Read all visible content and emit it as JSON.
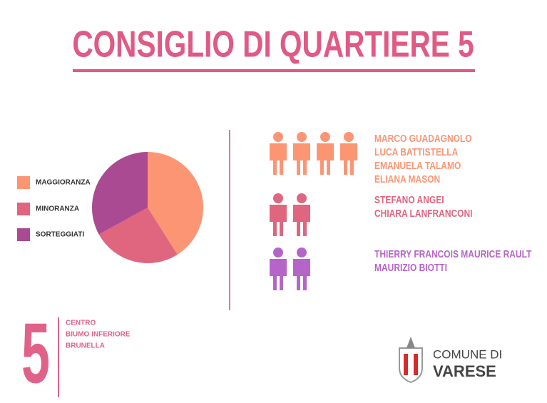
{
  "chart_data": {
    "type": "pie",
    "title": "CONSIGLIO DI QUARTIERE 5",
    "categories": [
      "MAGGIORANZA",
      "MINORANZA",
      "SORTEGGIATI"
    ],
    "values": [
      41,
      26,
      33
    ],
    "colors": [
      "#fb9574",
      "#e0657f",
      "#a94a92"
    ],
    "legend": "left"
  },
  "members": [
    {
      "color": "#fb9574",
      "names": [
        "MARCO GUADAGNOLO",
        "LUCA BATTISTELLA",
        "EMANUELA TALAMO",
        "ELIANA MASON"
      ]
    },
    {
      "color": "#e0657f",
      "names": [
        "STEFANO ANGEI",
        "CHIARA LANFRANCONI"
      ]
    },
    {
      "color": "#b565c8",
      "names": [
        "THIERRY FRANCOIS MAURICE RAULT",
        "MAURIZIO BIOTTI"
      ]
    }
  ],
  "district": {
    "number": "5",
    "areas": [
      "CENTRO",
      "BIUMO INFERIORE",
      "BRUNELLA"
    ]
  },
  "logo": {
    "line1": "COMUNE DI",
    "line2": "VARESE"
  }
}
